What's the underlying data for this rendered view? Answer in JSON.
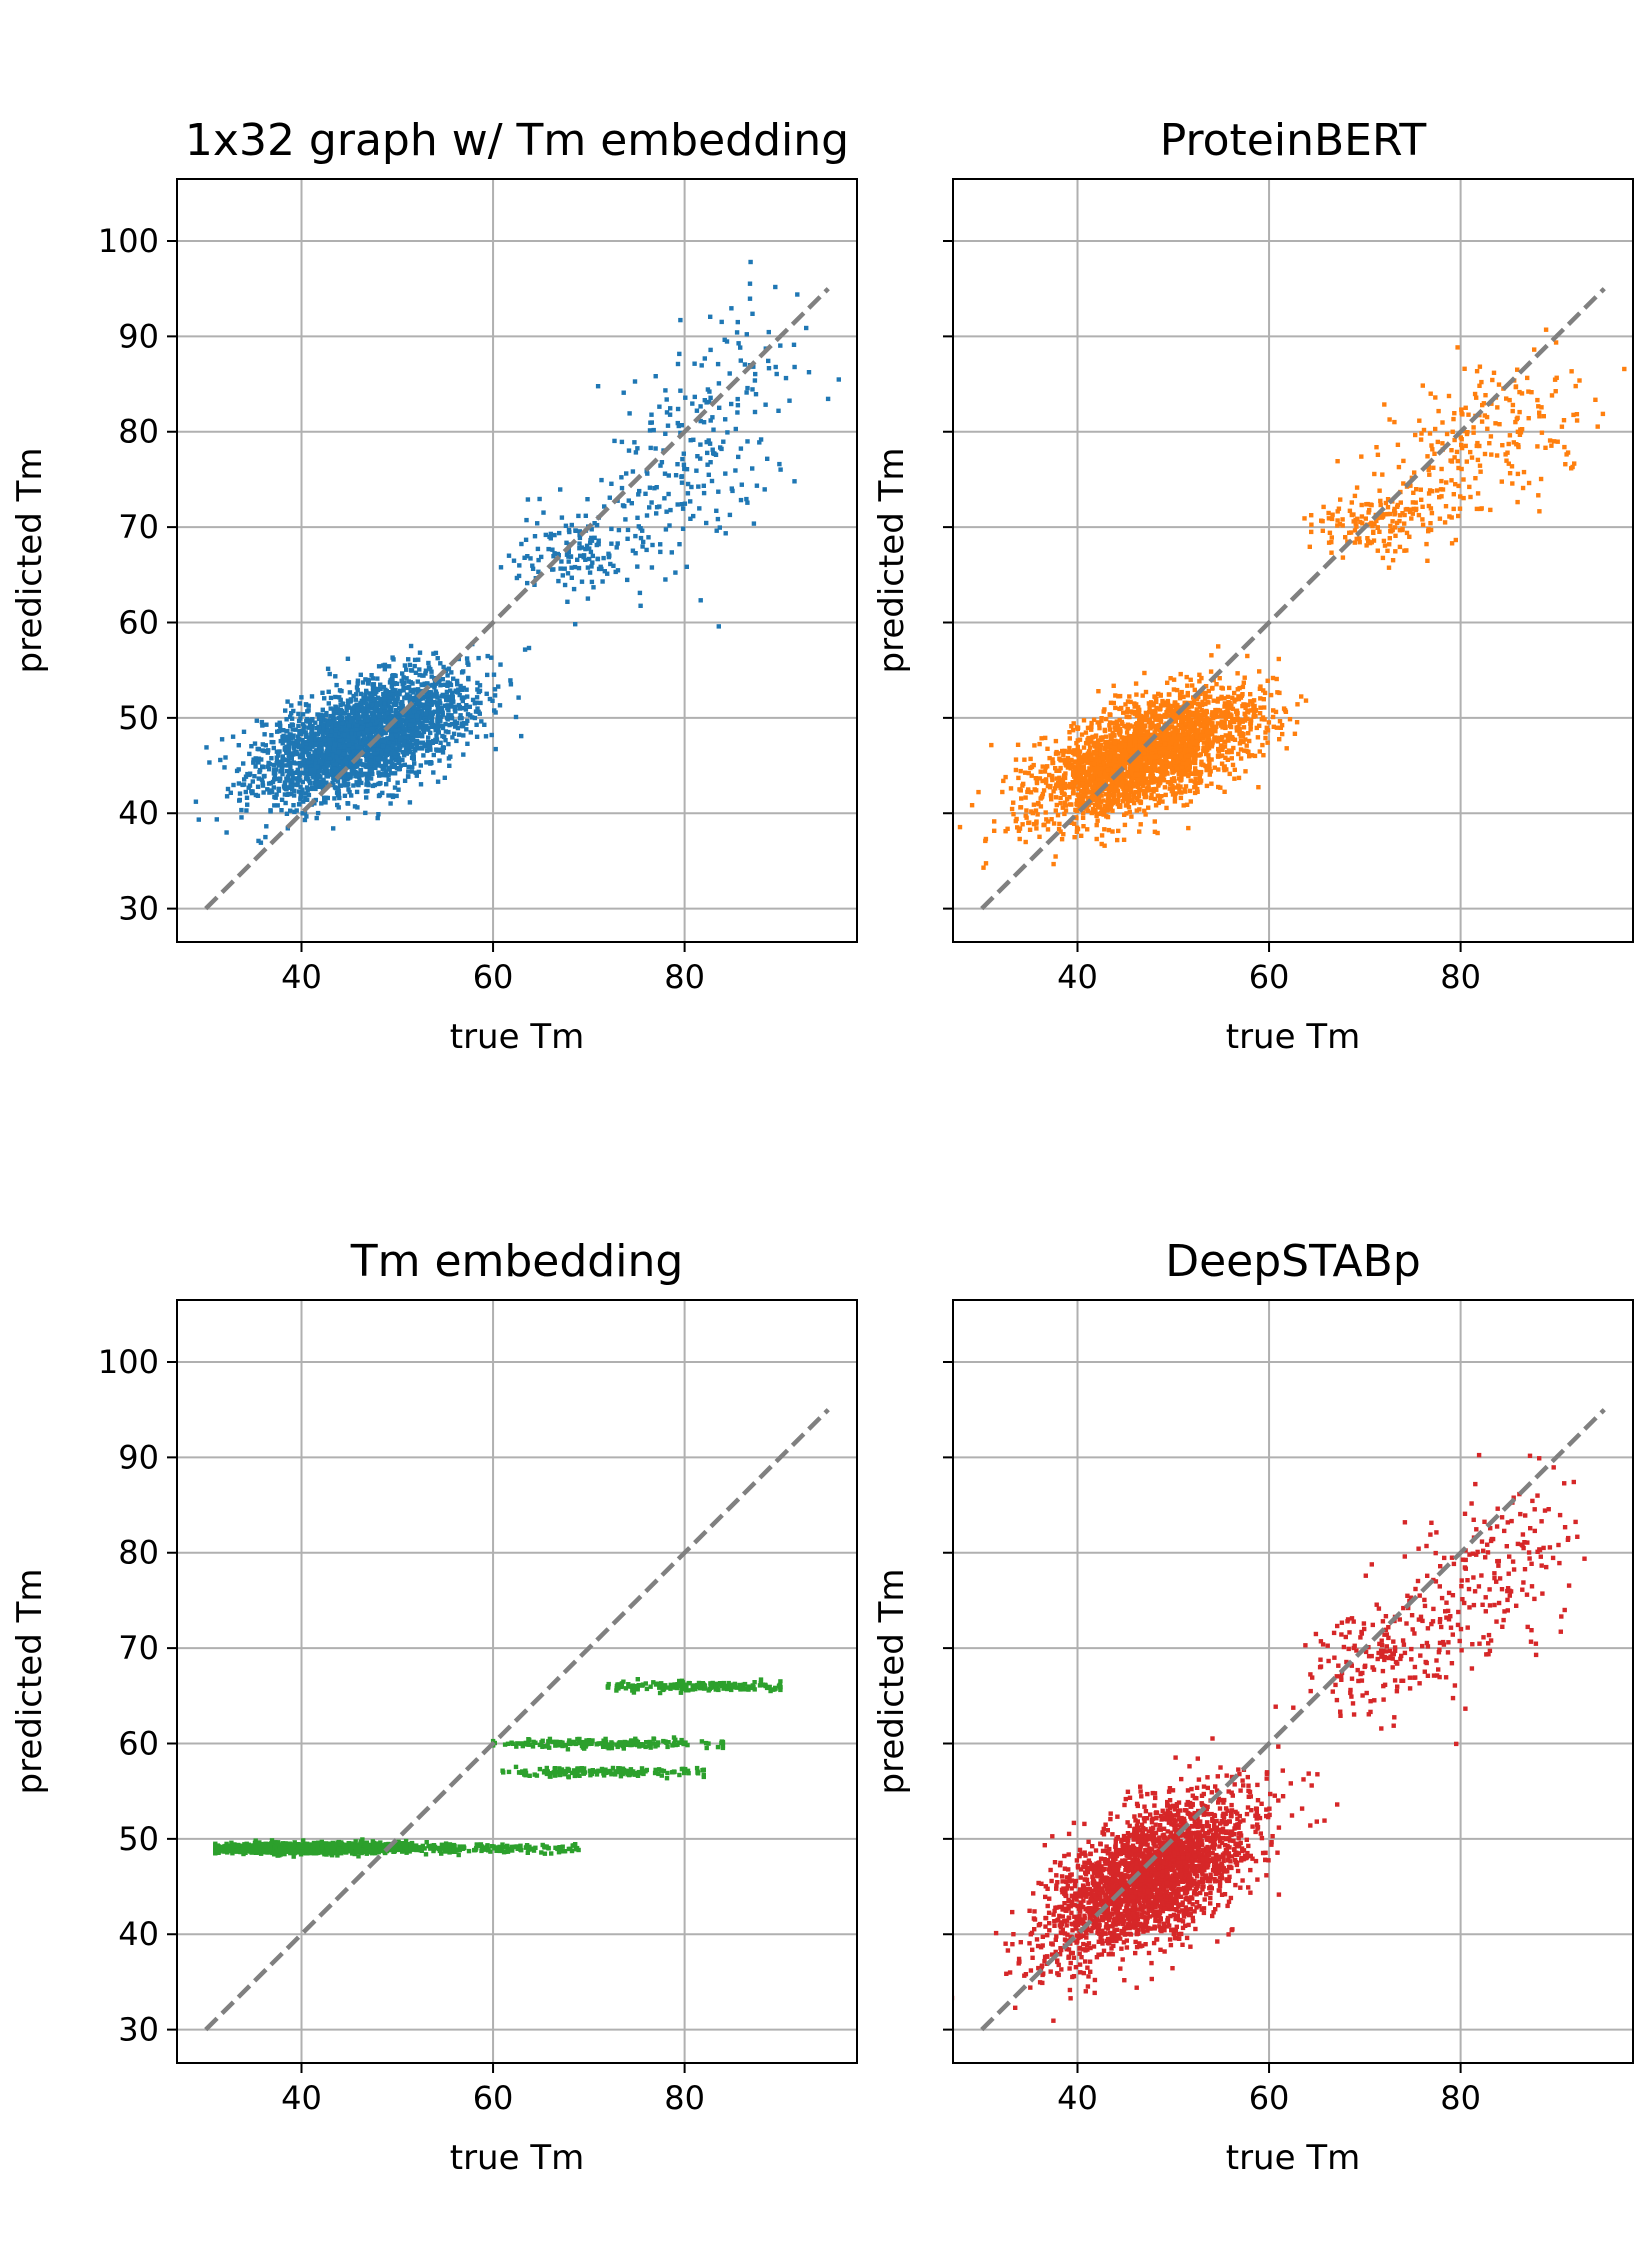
{
  "chart_data": [
    {
      "type": "scatter",
      "title": "1x32 graph w/ Tm embedding",
      "xlabel": "true Tm",
      "ylabel": "predicted Tm",
      "xlim": [
        27,
        98
      ],
      "ylim": [
        26.5,
        106.5
      ],
      "xticks": [
        "40",
        "60",
        "80"
      ],
      "yticks": [
        "30",
        "40",
        "50",
        "60",
        "70",
        "80",
        "90",
        "100"
      ],
      "grid": true,
      "color": "#1f77b4",
      "series": [
        {
          "clusters": [
            {
              "n": 2600,
              "cx": 46.5,
              "cy": 48.0,
              "sx": 5.5,
              "sy": 3.2,
              "rho": 0.55
            },
            {
              "n": 160,
              "cx": 70.0,
              "cy": 67.5,
              "sx": 3.8,
              "sy": 2.6,
              "rho": 0.2
            },
            {
              "n": 230,
              "cx": 81.5,
              "cy": 79.0,
              "sx": 5.0,
              "sy": 6.5,
              "rho": 0.4
            }
          ]
        }
      ],
      "reference_line": {
        "x": [
          30,
          95
        ],
        "y": [
          30,
          95
        ],
        "color": "#808080",
        "style": "dashed"
      }
    },
    {
      "type": "scatter",
      "title": "ProteinBERT",
      "xlabel": "true Tm",
      "ylabel": "predicted Tm",
      "xlim": [
        27,
        98
      ],
      "ylim": [
        26.5,
        106.5
      ],
      "xticks": [
        "40",
        "60",
        "80"
      ],
      "yticks": [],
      "grid": true,
      "color": "#ff7f0e",
      "series": [
        {
          "clusters": [
            {
              "n": 2600,
              "cx": 47.0,
              "cy": 46.0,
              "sx": 5.8,
              "sy": 3.4,
              "rho": 0.6
            },
            {
              "n": 170,
              "cx": 72.0,
              "cy": 70.5,
              "sx": 4.0,
              "sy": 1.8,
              "rho": 0.2
            },
            {
              "n": 220,
              "cx": 82.5,
              "cy": 79.0,
              "sx": 5.0,
              "sy": 4.0,
              "rho": 0.35
            }
          ]
        }
      ],
      "reference_line": {
        "x": [
          30,
          95
        ],
        "y": [
          30,
          95
        ],
        "color": "#808080",
        "style": "dashed"
      }
    },
    {
      "type": "scatter",
      "title": "Tm embedding",
      "xlabel": "true Tm",
      "ylabel": "predicted Tm",
      "xlim": [
        27,
        98
      ],
      "ylim": [
        26.5,
        106.5
      ],
      "xticks": [
        "40",
        "60",
        "80"
      ],
      "yticks": [
        "30",
        "40",
        "50",
        "60",
        "70",
        "80",
        "90",
        "100"
      ],
      "grid": true,
      "color": "#2ca02c",
      "series": [
        {
          "bands": [
            {
              "y": 49.0,
              "x_min": 31,
              "x_max": 69,
              "n": 2000,
              "center": 41,
              "spread": 5
            },
            {
              "y": 57.0,
              "x_min": 61,
              "x_max": 82,
              "n": 160,
              "center": 71,
              "spread": 5
            },
            {
              "y": 60.0,
              "x_min": 60,
              "x_max": 84,
              "n": 180,
              "center": 71,
              "spread": 6
            },
            {
              "y": 66.0,
              "x_min": 72,
              "x_max": 90,
              "n": 200,
              "center": 81,
              "spread": 5
            }
          ]
        }
      ],
      "reference_line": {
        "x": [
          30,
          95
        ],
        "y": [
          30,
          95
        ],
        "color": "#808080",
        "style": "dashed"
      }
    },
    {
      "type": "scatter",
      "title": "DeepSTABp",
      "xlabel": "true Tm",
      "ylabel": "predicted Tm",
      "xlim": [
        27,
        98
      ],
      "ylim": [
        26.5,
        106.5
      ],
      "xticks": [
        "40",
        "60",
        "80"
      ],
      "yticks": [],
      "grid": true,
      "color": "#d62728",
      "series": [
        {
          "clusters": [
            {
              "n": 2600,
              "cx": 47.5,
              "cy": 46.0,
              "sx": 5.5,
              "sy": 4.2,
              "rho": 0.6
            },
            {
              "n": 170,
              "cx": 71.5,
              "cy": 69.5,
              "sx": 4.0,
              "sy": 3.0,
              "rho": 0.3
            },
            {
              "n": 200,
              "cx": 82.5,
              "cy": 78.0,
              "sx": 5.0,
              "sy": 5.5,
              "rho": 0.4
            }
          ]
        }
      ],
      "reference_line": {
        "x": [
          30,
          95
        ],
        "y": [
          30,
          95
        ],
        "color": "#808080",
        "style": "dashed"
      }
    }
  ]
}
